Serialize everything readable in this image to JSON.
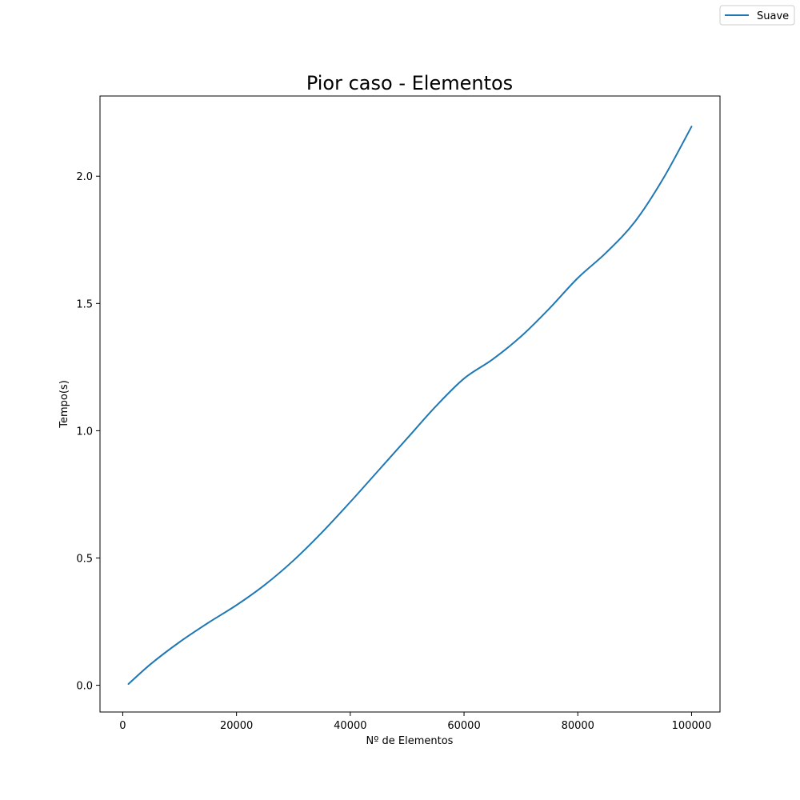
{
  "chart_data": {
    "type": "line",
    "title": "Pior caso - Elementos",
    "xlabel": "Nº de Elementos",
    "ylabel": "Tempo(s)",
    "xlim": [
      -4000,
      105000
    ],
    "ylim": [
      -0.105,
      2.315
    ],
    "xticks": [
      0,
      20000,
      40000,
      60000,
      80000,
      100000
    ],
    "xtick_labels": [
      "0",
      "20000",
      "40000",
      "60000",
      "80000",
      "100000"
    ],
    "yticks": [
      0.0,
      0.5,
      1.0,
      1.5,
      2.0
    ],
    "ytick_labels": [
      "0.0",
      "0.5",
      "1.0",
      "1.5",
      "2.0"
    ],
    "grid": false,
    "legend_position": "top-right",
    "series": [
      {
        "name": "Suave",
        "color": "#1f77b4",
        "x": [
          1000,
          5000,
          10000,
          15000,
          20000,
          25000,
          30000,
          35000,
          40000,
          45000,
          50000,
          55000,
          60000,
          65000,
          70000,
          75000,
          80000,
          85000,
          90000,
          95000,
          100000
        ],
        "y": [
          0.005,
          0.085,
          0.17,
          0.245,
          0.315,
          0.395,
          0.49,
          0.6,
          0.72,
          0.845,
          0.97,
          1.095,
          1.205,
          1.28,
          1.37,
          1.48,
          1.6,
          1.7,
          1.82,
          1.99,
          2.195
        ]
      }
    ]
  }
}
